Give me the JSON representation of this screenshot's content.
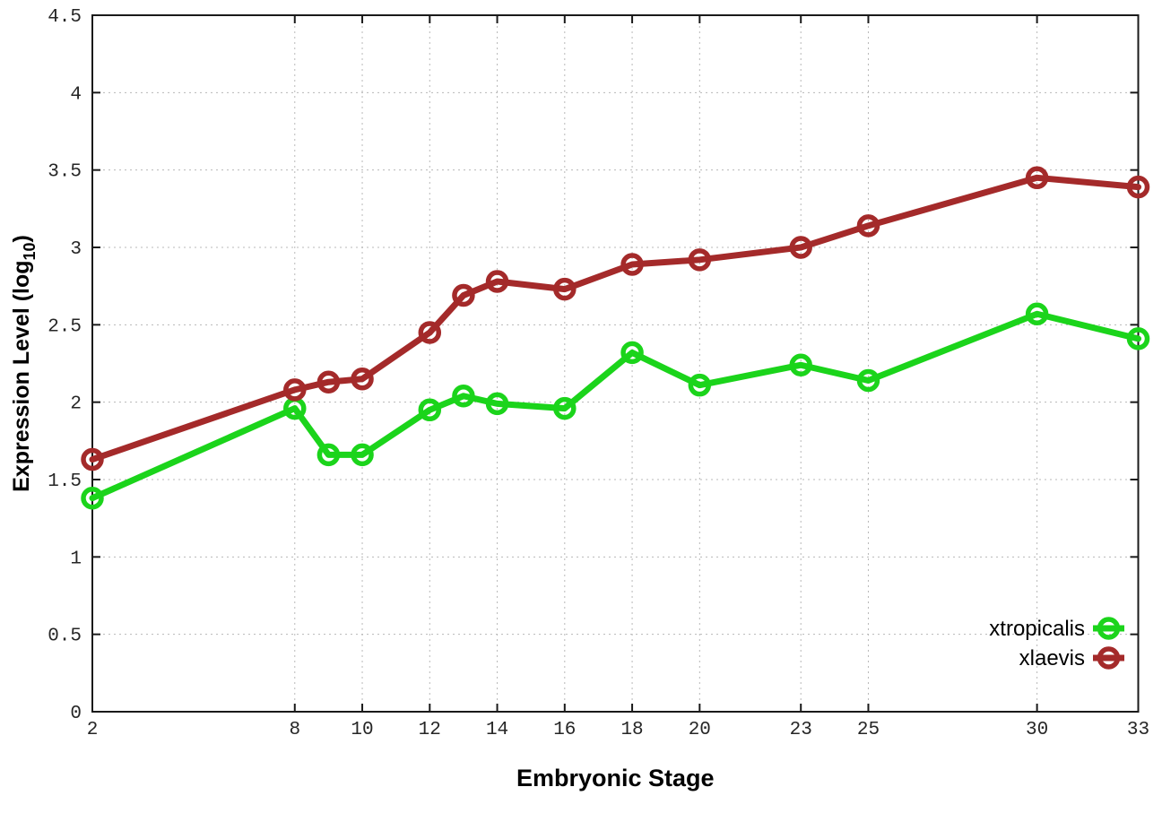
{
  "chart_data": {
    "type": "line",
    "title": "",
    "xlabel": "Embryonic Stage",
    "ylabel": "Expression Level (log10)",
    "ylabel_parts": {
      "main": "Expression Level (log",
      "sub": "10",
      "end": ")"
    },
    "x": [
      2,
      8,
      9,
      10,
      12,
      13,
      14,
      16,
      18,
      20,
      23,
      25,
      30,
      33
    ],
    "series": [
      {
        "name": "xtropicalis",
        "color": "#1bd41b",
        "marker": "open-circle",
        "values": [
          1.38,
          1.96,
          1.66,
          1.66,
          1.95,
          2.04,
          1.99,
          1.96,
          2.32,
          2.11,
          2.24,
          2.14,
          2.57,
          2.41
        ]
      },
      {
        "name": "xlaevis",
        "color": "#a42a2a",
        "marker": "open-circle",
        "values": [
          1.63,
          2.08,
          2.13,
          2.15,
          2.45,
          2.69,
          2.78,
          2.73,
          2.89,
          2.92,
          3.0,
          3.14,
          3.45,
          3.39
        ]
      }
    ],
    "xlim": [
      2,
      33
    ],
    "ylim": [
      0,
      4.5
    ],
    "xticks": [
      2,
      8,
      10,
      12,
      14,
      16,
      18,
      20,
      23,
      25,
      30,
      33
    ],
    "xtick_labels": [
      "2",
      "8",
      "10",
      "12",
      "14",
      "16",
      "18",
      "20",
      "23",
      "25",
      "30",
      "33"
    ],
    "yticks": [
      0,
      0.5,
      1,
      1.5,
      2,
      2.5,
      3,
      3.5,
      4,
      4.5
    ],
    "ytick_labels": [
      "0",
      "0.5",
      "1",
      "1.5",
      "2",
      "2.5",
      "3",
      "3.5",
      "4",
      "4.5"
    ],
    "grid": true,
    "grid_style": "dotted",
    "legend_position": "bottom-right",
    "legend_entries": [
      "xtropicalis",
      "xlaevis"
    ]
  },
  "colors": {
    "background": "#ffffff",
    "border": "#1a1a1a",
    "grid": "#b8b8b8",
    "tick_text": "#262626",
    "series_green": "#1bd41b",
    "series_red": "#a42a2a"
  }
}
